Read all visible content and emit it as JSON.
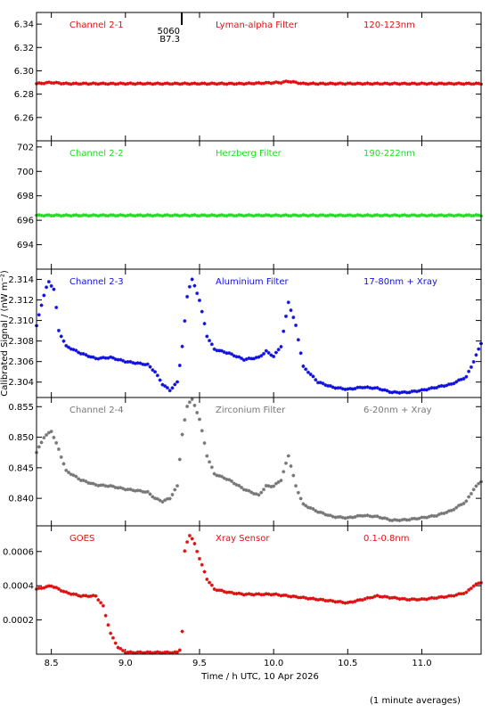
{
  "xlabel": "Time / h UTC, 10 Apr 2026",
  "ylabel": "Calibrated Signal / (nW m⁻²)",
  "footnote": "(1 minute averages)",
  "marker": {
    "time_hours": 9.38,
    "labels": [
      "5060",
      "B7.3"
    ]
  },
  "x_axis": {
    "range": [
      8.4,
      11.4
    ],
    "ticks": [
      8.5,
      9.0,
      9.5,
      10.0,
      10.5,
      11.0
    ],
    "tick_labels": [
      "8.5",
      "9.0",
      "9.5",
      "10.0",
      "10.5",
      "11.0"
    ]
  },
  "chart_data": [
    {
      "type": "scatter",
      "labels": [
        "Channel 2-1",
        "Lyman-alpha Filter",
        "120-123nm"
      ],
      "color": "#dd1111",
      "ylim": [
        6.24,
        6.35
      ],
      "yticks": [
        6.26,
        6.28,
        6.3,
        6.32,
        6.34
      ],
      "ytick_labels": [
        "6.26",
        "6.28",
        "6.30",
        "6.32",
        "6.34"
      ],
      "x": [
        8.4,
        8.5,
        8.6,
        9.0,
        9.4,
        9.8,
        10.05,
        10.1,
        10.2,
        10.5,
        11.0,
        11.4
      ],
      "y": [
        6.289,
        6.29,
        6.289,
        6.289,
        6.289,
        6.289,
        6.29,
        6.291,
        6.289,
        6.289,
        6.289,
        6.289
      ]
    },
    {
      "type": "scatter",
      "labels": [
        "Channel 2-2",
        "Herzberg Filter",
        "190-222nm"
      ],
      "color": "#22dd22",
      "ylim": [
        692.0,
        702.5
      ],
      "yticks": [
        694,
        696,
        698,
        700,
        702
      ],
      "ytick_labels": [
        "694",
        "696",
        "698",
        "700",
        "702"
      ],
      "x": [
        8.4,
        9.0,
        9.6,
        10.2,
        10.8,
        11.4
      ],
      "y": [
        696.4,
        696.4,
        696.4,
        696.4,
        696.4,
        696.4
      ]
    },
    {
      "type": "scatter",
      "labels": [
        "Channel 2-3",
        "Aluminium Filter",
        "17-80nm + Xray"
      ],
      "color": "#1111dd",
      "ylim": [
        2.3025,
        2.315
      ],
      "yticks": [
        2.304,
        2.306,
        2.308,
        2.31,
        2.312,
        2.314
      ],
      "ytick_labels": [
        "2.304",
        "2.306",
        "2.308",
        "2.310",
        "2.312",
        "2.314"
      ],
      "x": [
        8.4,
        8.45,
        8.48,
        8.52,
        8.55,
        8.6,
        8.7,
        8.8,
        8.9,
        9.0,
        9.1,
        9.15,
        9.2,
        9.25,
        9.3,
        9.35,
        9.38,
        9.42,
        9.45,
        9.5,
        9.55,
        9.6,
        9.7,
        9.8,
        9.9,
        9.95,
        10.0,
        10.05,
        10.1,
        10.15,
        10.2,
        10.3,
        10.4,
        10.5,
        10.6,
        10.7,
        10.8,
        10.9,
        11.0,
        11.1,
        11.2,
        11.3,
        11.35,
        11.4
      ],
      "y": [
        2.3095,
        2.3125,
        2.3138,
        2.313,
        2.309,
        2.3075,
        2.3068,
        2.3063,
        2.3064,
        2.306,
        2.3058,
        2.3057,
        2.305,
        2.3038,
        2.3032,
        2.304,
        2.307,
        2.3128,
        2.314,
        2.312,
        2.3085,
        2.3072,
        2.3068,
        2.3062,
        2.3064,
        2.307,
        2.3065,
        2.3075,
        2.3118,
        2.3095,
        2.3055,
        2.304,
        2.3035,
        2.3033,
        2.3035,
        2.3034,
        2.303,
        2.303,
        2.3032,
        2.3035,
        2.3038,
        2.3045,
        2.306,
        2.3078
      ]
    },
    {
      "type": "scatter",
      "labels": [
        "Channel 2-4",
        "Zirconium Filter",
        "6-20nm + Xray"
      ],
      "color": "#777777",
      "ylim": [
        0.8355,
        0.8565
      ],
      "yticks": [
        0.84,
        0.845,
        0.85,
        0.855
      ],
      "ytick_labels": [
        "0.840",
        "0.845",
        "0.850",
        "0.855"
      ],
      "x": [
        8.4,
        8.45,
        8.5,
        8.55,
        8.6,
        8.7,
        8.8,
        8.9,
        9.0,
        9.1,
        9.15,
        9.2,
        9.25,
        9.3,
        9.35,
        9.38,
        9.42,
        9.45,
        9.5,
        9.55,
        9.6,
        9.7,
        9.8,
        9.9,
        9.95,
        10.0,
        10.05,
        10.1,
        10.15,
        10.2,
        10.3,
        10.4,
        10.5,
        10.6,
        10.7,
        10.8,
        10.9,
        11.0,
        11.1,
        11.2,
        11.3,
        11.35,
        11.4
      ],
      "y": [
        0.8475,
        0.85,
        0.851,
        0.848,
        0.8445,
        0.843,
        0.8422,
        0.842,
        0.8415,
        0.8412,
        0.841,
        0.84,
        0.8395,
        0.84,
        0.842,
        0.85,
        0.8555,
        0.8562,
        0.853,
        0.847,
        0.844,
        0.843,
        0.8415,
        0.8405,
        0.842,
        0.842,
        0.843,
        0.847,
        0.842,
        0.839,
        0.8378,
        0.837,
        0.8368,
        0.8372,
        0.837,
        0.8364,
        0.8365,
        0.8368,
        0.8372,
        0.838,
        0.8395,
        0.8415,
        0.8428
      ]
    },
    {
      "type": "scatter",
      "labels": [
        "GOES",
        "Xray Sensor",
        "0.1-0.8nm"
      ],
      "color": "#dd1111",
      "ylim": [
        0.0,
        0.00075
      ],
      "yticks": [
        0.0002,
        0.0004,
        0.0006
      ],
      "ytick_labels": [
        "0.0002",
        "0.0004",
        "0.0006"
      ],
      "x": [
        8.4,
        8.5,
        8.6,
        8.7,
        8.8,
        8.85,
        8.9,
        8.95,
        9.0,
        9.1,
        9.2,
        9.3,
        9.35,
        9.38,
        9.4,
        9.43,
        9.46,
        9.5,
        9.55,
        9.6,
        9.7,
        9.8,
        9.9,
        10.0,
        10.1,
        10.2,
        10.3,
        10.4,
        10.5,
        10.6,
        10.7,
        10.8,
        10.9,
        11.0,
        11.1,
        11.2,
        11.3,
        11.35,
        11.4
      ],
      "y": [
        0.00038,
        0.0004,
        0.00036,
        0.00034,
        0.00034,
        0.00028,
        0.00012,
        4e-05,
        1e-05,
        1e-05,
        1e-05,
        1e-05,
        1e-05,
        4e-05,
        0.0006,
        0.0007,
        0.00066,
        0.00056,
        0.00044,
        0.00038,
        0.00036,
        0.00035,
        0.00035,
        0.00035,
        0.00034,
        0.00033,
        0.00032,
        0.00031,
        0.0003,
        0.00032,
        0.00034,
        0.00033,
        0.00032,
        0.00032,
        0.00033,
        0.00034,
        0.00036,
        0.0004,
        0.00042
      ]
    }
  ]
}
